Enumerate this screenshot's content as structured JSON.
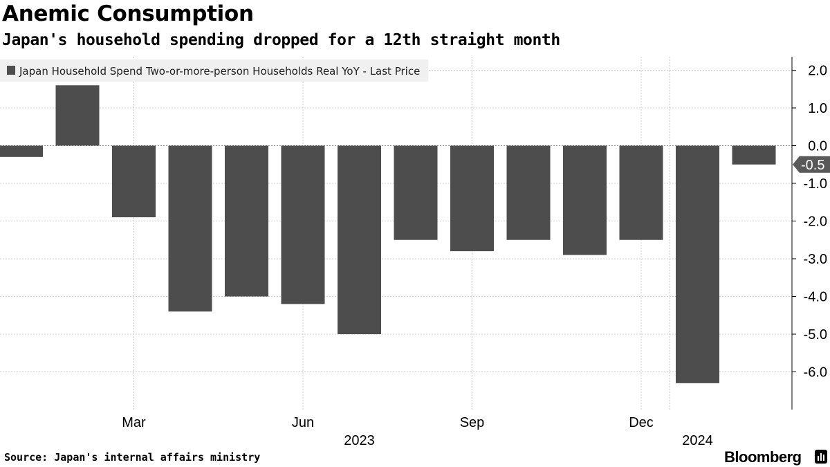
{
  "header": {
    "title": "Anemic Consumption",
    "subtitle": "Japan's household spending dropped for a 12th straight month"
  },
  "footer": {
    "source": "Source: Japan's internal affairs ministry",
    "brand": "Bloomberg"
  },
  "chart_data": {
    "type": "bar",
    "categories": [
      "2023-01",
      "2023-02",
      "2023-03",
      "2023-04",
      "2023-05",
      "2023-06",
      "2023-07",
      "2023-08",
      "2023-09",
      "2023-10",
      "2023-11",
      "2023-12",
      "2024-01",
      "2024-02"
    ],
    "series": [
      {
        "name": "Japan Household Spend Two-or-more-person Households Real YoY - Last Price",
        "values": [
          -0.3,
          1.6,
          -1.9,
          -4.4,
          -4.0,
          -4.2,
          -5.0,
          -2.5,
          -2.8,
          -2.5,
          -2.9,
          -2.5,
          -6.3,
          -0.5
        ],
        "color": "#4d4d4d"
      }
    ],
    "x_tick_labels": [
      {
        "label": "Mar",
        "category": "2023-03"
      },
      {
        "label": "Jun",
        "category": "2023-06"
      },
      {
        "label": "Sep",
        "category": "2023-09"
      },
      {
        "label": "Dec",
        "category": "2023-12"
      }
    ],
    "year_labels": [
      {
        "label": "2023",
        "category": "2023-07"
      },
      {
        "label": "2024",
        "category": "2024-01"
      }
    ],
    "y_ticks": [
      2.0,
      1.0,
      0.0,
      -1.0,
      -2.0,
      -3.0,
      -4.0,
      -5.0,
      -6.0
    ],
    "y_tick_labels": [
      "2.0",
      "1.0",
      "0.0",
      "-1.0",
      "-2.0",
      "-3.0",
      "-4.0",
      "-5.0",
      "-6.0"
    ],
    "ylim": [
      -7.0,
      2.3
    ],
    "last_price_label": "-0.5",
    "last_price_value": -0.5,
    "legend_position": "top-left",
    "y_axis_side": "right",
    "grid": true,
    "colors": {
      "bar": "#4d4d4d",
      "grid": "#cccccc",
      "axis": "#000000",
      "legend_bg": "#f0f0f0",
      "background": "#ffffff"
    }
  }
}
